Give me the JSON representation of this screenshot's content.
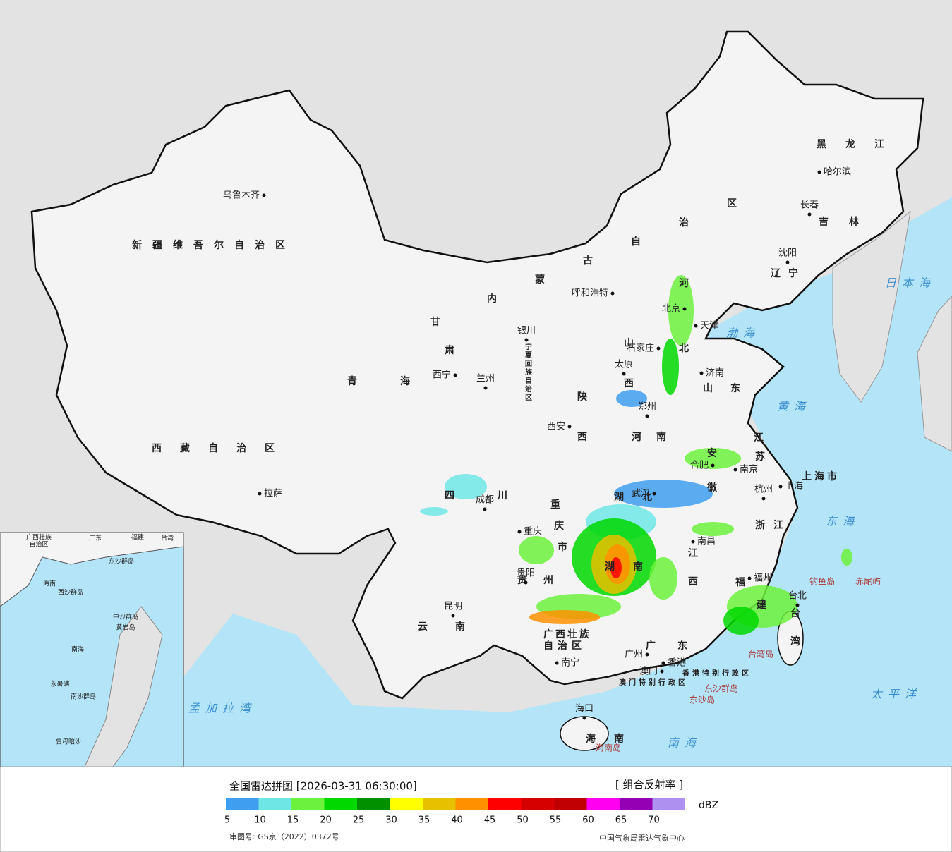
{
  "map": {
    "provinces": [
      "新疆维吾尔自治区",
      "西藏自治区",
      "青海",
      "甘肃",
      "内蒙古自治区",
      "黑龙江",
      "吉林",
      "辽宁",
      "河北",
      "山西",
      "山东",
      "河南",
      "陕西",
      "宁夏回族自治区",
      "四川",
      "重庆市",
      "湖北",
      "安徽",
      "江苏",
      "上海市",
      "浙江",
      "江西",
      "湖南",
      "贵州",
      "云南",
      "福建",
      "台湾",
      "广西壮族",
      "自治区",
      "广东",
      "海南",
      "香港特别行政区",
      "澳门特别行政区"
    ],
    "cities": [
      "乌鲁木齐",
      "呼和浩特",
      "哈尔滨",
      "长春",
      "沈阳",
      "北京",
      "天津",
      "石家庄",
      "太原",
      "济南",
      "银川",
      "西宁",
      "兰州",
      "西安",
      "郑州",
      "合肥",
      "南京",
      "上海",
      "杭州",
      "武汉",
      "南昌",
      "成都",
      "重庆",
      "贵阳",
      "昆明",
      "拉萨",
      "南宁",
      "广州",
      "福州",
      "台北",
      "海口",
      "澳门",
      "香港"
    ],
    "islands": [
      "钓鱼岛",
      "赤尾屿",
      "台湾岛",
      "东沙群岛",
      "东沙岛",
      "海南岛"
    ],
    "seas": [
      "日本海",
      "渤海",
      "黄海",
      "东海",
      "太平洋",
      "南海",
      "孟加拉湾"
    ],
    "inset_labels": [
      "广西壮族",
      "自治区",
      "广东",
      "福建",
      "台湾",
      "海南",
      "南海",
      "东沙群岛",
      "西沙群岛",
      "中沙群岛",
      "黄岩岛",
      "永暑礁",
      "南沙群岛",
      "曾母暗沙"
    ]
  },
  "legend": {
    "title": "全国雷达拼图 [2026-03-31 06:30:00]",
    "product": "[ 组合反射率 ]",
    "unit": "dBZ",
    "ticks": [
      5,
      10,
      15,
      20,
      25,
      30,
      35,
      40,
      45,
      50,
      55,
      60,
      65,
      70
    ],
    "colors": [
      "#3f9ef0",
      "#6ee6e6",
      "#6cf23c",
      "#00d800",
      "#009000",
      "#ffff00",
      "#e7c000",
      "#ff9000",
      "#ff0000",
      "#d60000",
      "#c00000",
      "#ff00f0",
      "#9600b4",
      "#ad90f0"
    ]
  },
  "footer": {
    "approval": "审图号: GS京（2022）0372号",
    "source": "中国气象局雷达气象中心"
  }
}
